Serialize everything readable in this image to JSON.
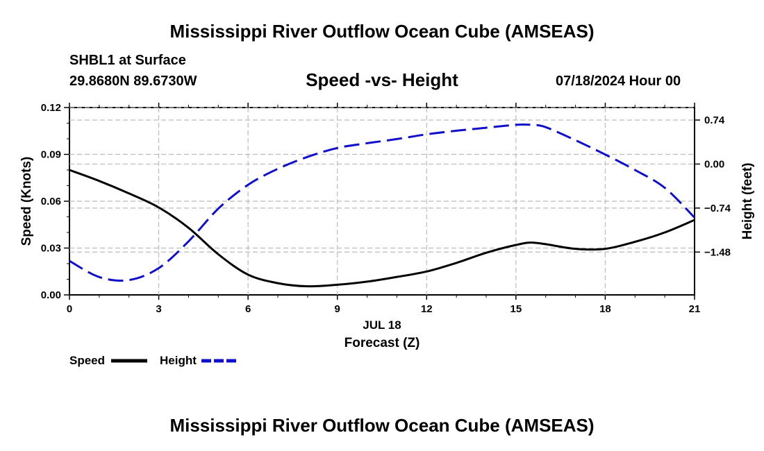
{
  "page": {
    "title": "Mississippi River Outflow Ocean Cube (AMSEAS)",
    "footer_title": "Mississippi River Outflow Ocean Cube (AMSEAS)",
    "station": "SHBL1 at Surface",
    "coords": "29.8680N  89.6730W",
    "subtitle": "Speed -vs- Height",
    "datetime": "07/18/2024 Hour 00"
  },
  "colors": {
    "speed": "#000000",
    "height": "#1010cc",
    "grid": "#bbbbbb"
  },
  "chart_data": {
    "type": "line",
    "title": "Speed -vs- Height",
    "xlabel": "Forecast (Z)",
    "xdate_label": "JUL 18",
    "ylabel_left": "Speed (Knots)",
    "ylabel_right": "Height (feet)",
    "xlim": [
      0,
      21
    ],
    "xticks": [
      0,
      3,
      6,
      9,
      12,
      15,
      18,
      21
    ],
    "xtick_labels": [
      "0",
      "3",
      "6",
      "9",
      "12",
      "15",
      "18",
      "21"
    ],
    "ylim_left": [
      0,
      0.12
    ],
    "yticks_left": [
      0,
      0.03,
      0.06,
      0.09,
      0.12
    ],
    "ytick_labels_left": [
      "0.00",
      "0.03",
      "0.06",
      "0.09",
      "0.12"
    ],
    "ylim_right": [
      -2.2,
      0.95
    ],
    "yticks_right": [
      -1.48,
      -0.74,
      0.0,
      0.74
    ],
    "ytick_labels_right": [
      "−1.48",
      "−0.74",
      "0.00",
      "0.74"
    ],
    "legend": [
      {
        "name": "Speed",
        "style": "solid"
      },
      {
        "name": "Height",
        "style": "dashed"
      }
    ],
    "legend_position": "bottom-left",
    "series": [
      {
        "name": "Speed",
        "axis": "left",
        "style": "solid",
        "x": [
          0,
          1,
          2,
          3,
          4,
          5,
          6,
          7,
          8,
          9,
          10,
          11,
          12,
          13,
          14,
          15,
          15.5,
          16,
          17,
          18,
          19,
          20,
          21
        ],
        "values": [
          0.08,
          0.073,
          0.065,
          0.056,
          0.043,
          0.026,
          0.013,
          0.0075,
          0.0055,
          0.0065,
          0.0085,
          0.0115,
          0.015,
          0.0205,
          0.027,
          0.032,
          0.0335,
          0.0325,
          0.0295,
          0.0295,
          0.034,
          0.04,
          0.048
        ]
      },
      {
        "name": "Height",
        "axis": "right",
        "style": "dashed",
        "x": [
          0,
          1,
          2,
          3,
          4,
          5,
          6,
          7,
          8,
          9,
          10,
          11,
          12,
          13,
          14,
          15,
          15.5,
          16,
          17,
          18,
          19,
          20,
          21
        ],
        "values": [
          -1.63,
          -1.9,
          -1.95,
          -1.75,
          -1.3,
          -0.75,
          -0.35,
          -0.08,
          0.12,
          0.27,
          0.35,
          0.42,
          0.5,
          0.56,
          0.61,
          0.66,
          0.66,
          0.62,
          0.4,
          0.16,
          -0.1,
          -0.4,
          -0.9
        ]
      }
    ]
  }
}
